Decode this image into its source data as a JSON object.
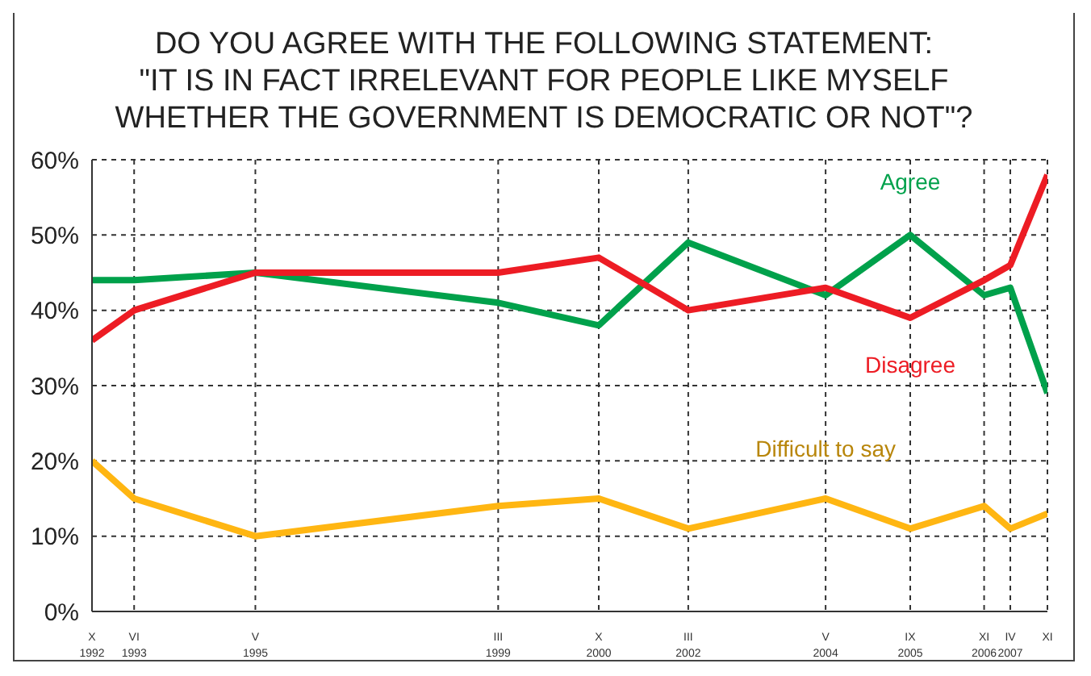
{
  "chart_data": {
    "type": "line",
    "title": "DO YOU AGREE WITH THE FOLLOWING STATEMENT:\n\"IT IS IN FACT IRRELEVANT FOR PEOPLE LIKE MYSELF\nWHETHER THE GOVERNMENT IS DEMOCRATIC OR NOT\"?",
    "x": [
      "1992-10",
      "1993-06",
      "1995-05",
      "1999-03",
      "2000-10",
      "2002-03",
      "2004-05",
      "2005-09",
      "2006-11",
      "2007-04",
      "2007-11"
    ],
    "series": [
      {
        "name": "Agree",
        "color": "#00a14b",
        "values": [
          44,
          44,
          45,
          41,
          38,
          49,
          42,
          50,
          42,
          43,
          29
        ]
      },
      {
        "name": "Disagree",
        "color": "#ed1c24",
        "values": [
          36,
          40,
          45,
          45,
          47,
          40,
          43,
          39,
          44,
          46,
          58
        ]
      },
      {
        "name": "Difficult to say",
        "color": "#ffb612",
        "values": [
          20,
          15,
          10,
          14,
          15,
          11,
          15,
          11,
          14,
          11,
          13
        ]
      }
    ],
    "xlim": [
      "1992-10",
      "2007-11"
    ],
    "xticks": [
      {
        "value": "1992-10",
        "label": "X\n1992"
      },
      {
        "value": "1993-06",
        "label": "VI\n1993"
      },
      {
        "value": "1995-05",
        "label": "V\n1995"
      },
      {
        "value": "1999-03",
        "label": "III\n1999"
      },
      {
        "value": "2000-10",
        "label": "X\n2000"
      },
      {
        "value": "2002-03",
        "label": "III\n2002"
      },
      {
        "value": "2004-05",
        "label": "V\n2004"
      },
      {
        "value": "2005-09",
        "label": "IX\n2005"
      },
      {
        "value": "2006-11",
        "label": "XI\n2006"
      },
      {
        "value": "2007-04",
        "label": "IV\n2007"
      },
      {
        "value": "2007-11",
        "label": "XI"
      }
    ],
    "ylim": [
      0,
      60
    ],
    "yticks": [
      {
        "value": 0,
        "label": "0%"
      },
      {
        "value": 10,
        "label": "10%"
      },
      {
        "value": 20,
        "label": "20%"
      },
      {
        "value": 30,
        "label": "30%"
      },
      {
        "value": 40,
        "label": "40%"
      },
      {
        "value": 50,
        "label": "50%"
      },
      {
        "value": 60,
        "label": "60%"
      }
    ],
    "grid": true,
    "legend": false,
    "marker": "none",
    "line_style": "solid"
  }
}
